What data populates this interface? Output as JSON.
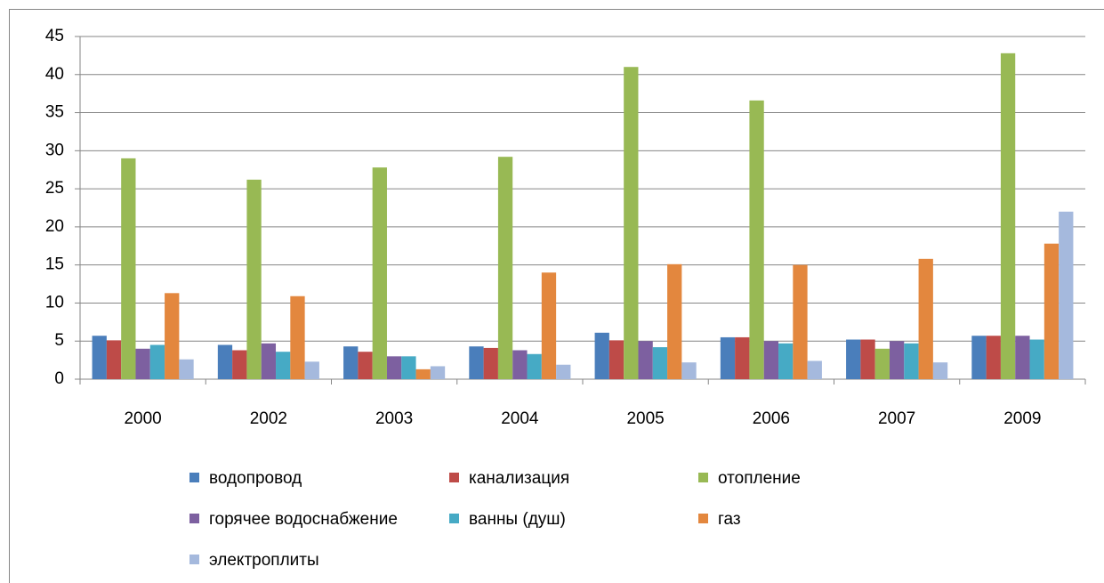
{
  "chart_data": {
    "type": "bar",
    "categories": [
      "2000",
      "2002",
      "2003",
      "2004",
      "2005",
      "2006",
      "2007",
      "2009"
    ],
    "series": [
      {
        "name": "водопровод",
        "color": "#4a7ebb",
        "values": [
          5.7,
          4.5,
          4.3,
          4.3,
          6.1,
          5.5,
          5.2,
          5.7
        ]
      },
      {
        "name": "канализация",
        "color": "#be4b48",
        "values": [
          5.1,
          3.8,
          3.6,
          4.1,
          5.1,
          5.5,
          5.2,
          5.7
        ]
      },
      {
        "name": "отопление",
        "color": "#98b954",
        "values": [
          29,
          26.2,
          27.8,
          29.2,
          41,
          36.6,
          4,
          42.8
        ]
      },
      {
        "name": "горячее водоснабжение",
        "color": "#7d60a0",
        "values": [
          4,
          4.7,
          3,
          3.8,
          5,
          5,
          5,
          5.7
        ]
      },
      {
        "name": "ванны (душ)",
        "color": "#46aac5",
        "values": [
          4.5,
          3.6,
          3,
          3.3,
          4.2,
          4.7,
          4.7,
          5.2
        ]
      },
      {
        "name": "газ",
        "color": "#e3873e",
        "values": [
          11.3,
          10.9,
          1.3,
          14,
          15.1,
          15,
          15.8,
          17.8
        ]
      },
      {
        "name": "электроплиты",
        "color": "#a5b9dd",
        "values": [
          2.6,
          2.3,
          1.7,
          1.9,
          2.2,
          2.4,
          2.2,
          22
        ]
      }
    ],
    "ylim": [
      0,
      45
    ],
    "yticks": [
      0,
      5,
      10,
      15,
      20,
      25,
      30,
      35,
      40,
      45
    ],
    "grid": true,
    "legend": "bottom"
  }
}
